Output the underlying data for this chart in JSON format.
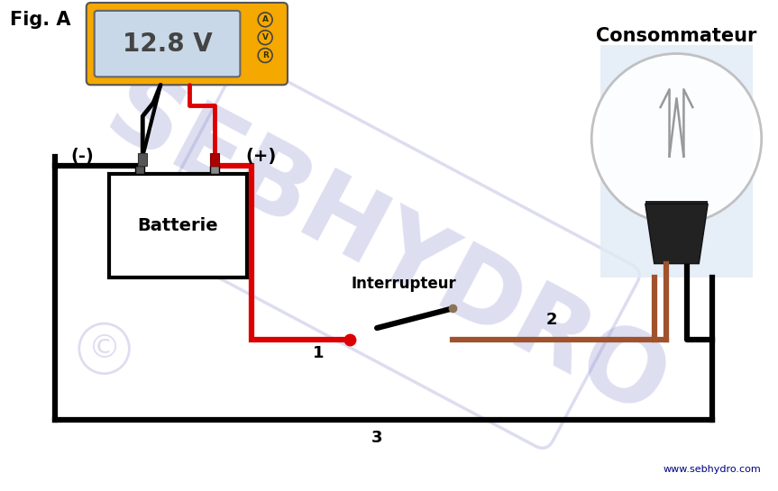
{
  "fig_label": "Fig. A",
  "multimeter_value": "12.8 V",
  "multimeter_body_color": "#F5A800",
  "multimeter_screen_color": "#C8D8E8",
  "multimeter_screen_border": "#666666",
  "battery_label": "Batterie",
  "switch_label": "Interrupteur",
  "consumer_label": "Consommateur",
  "watermark": "SEBHYDRO",
  "watermark_color": "#8888CC",
  "copyright_color": "#8888CC",
  "website": "www.sebhydro.com",
  "wire_black": "#000000",
  "wire_red": "#DD0000",
  "wire_brown": "#A0522D",
  "bg_color": "#FFFFFF",
  "seg1": "1",
  "seg2": "2",
  "seg3": "3",
  "minus_label": "(-)",
  "plus_label": "(+)",
  "bulb_bg": "#E0EAF5",
  "bulb_glass_edge": "#BBBBBB",
  "bulb_base_color": "#222222",
  "bulb_filament_color": "#999999",
  "probe_black_body": "#444444",
  "probe_red_body": "#880000",
  "btn_label_color": "#333300"
}
